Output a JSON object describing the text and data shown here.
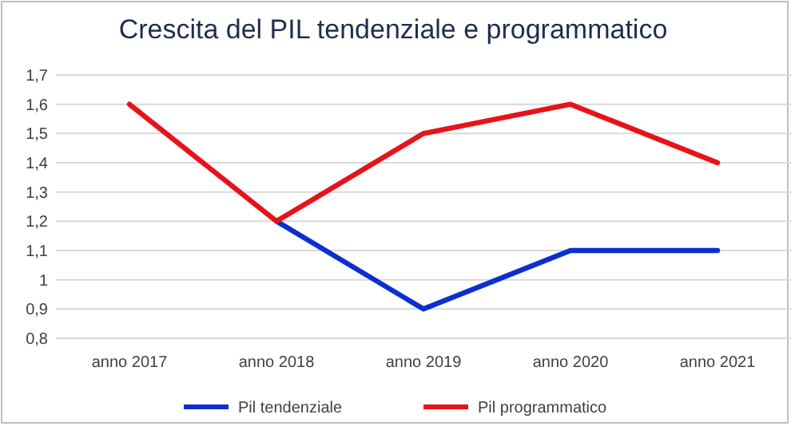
{
  "chart_data": {
    "type": "line",
    "title": "Crescita del PIL tendenziale e programmatico",
    "categories": [
      "anno 2017",
      "anno 2018",
      "anno 2019",
      "anno 2020",
      "anno 2021"
    ],
    "series": [
      {
        "name": "Pil tendenziale",
        "color": "#0b2fd0",
        "values": [
          null,
          1.2,
          0.9,
          1.1,
          1.1
        ]
      },
      {
        "name": "Pil programmatico",
        "color": "#e8121a",
        "values": [
          1.6,
          1.2,
          1.5,
          1.6,
          1.4
        ]
      }
    ],
    "ylim": [
      0.8,
      1.7
    ],
    "yticks": [
      {
        "value": 0.8,
        "label": "0,8"
      },
      {
        "value": 0.9,
        "label": "0,9"
      },
      {
        "value": 1,
        "label": "1"
      },
      {
        "value": 1.1,
        "label": "1,1"
      },
      {
        "value": 1.2,
        "label": "1,2"
      },
      {
        "value": 1.3,
        "label": "1,3"
      },
      {
        "value": 1.4,
        "label": "1,4"
      },
      {
        "value": 1.5,
        "label": "1,5"
      },
      {
        "value": 1.6,
        "label": "1,6"
      },
      {
        "value": 1.7,
        "label": "1,7"
      }
    ],
    "grid": true,
    "legend": "bottom",
    "marker": "none",
    "line_style": "solid"
  }
}
